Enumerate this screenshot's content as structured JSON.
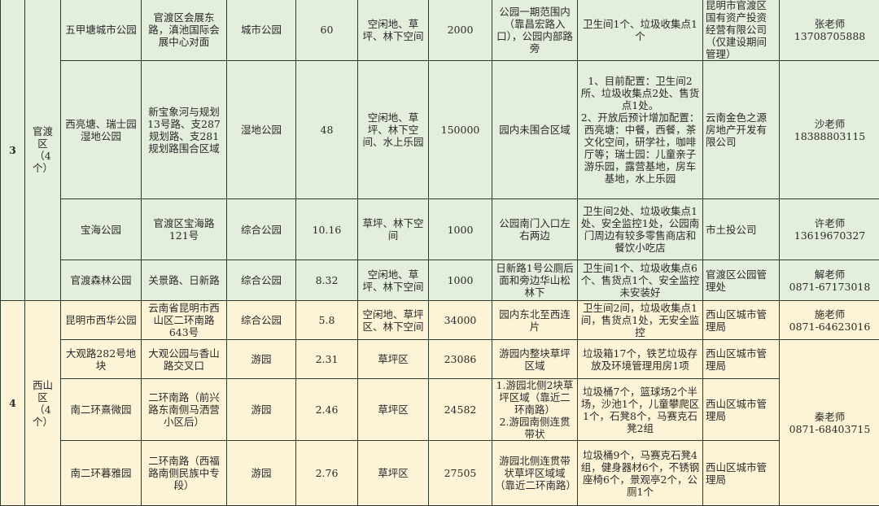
{
  "groups": [
    {
      "no": "3",
      "district": "官渡区\n（4个）",
      "rows": [
        {
          "name": "五甲塘城市公园",
          "address": "官渡区会展东路，滇池国际会展中心对面",
          "type": "城市公园",
          "area": "60",
          "space": "空闲地、草坪、林下空间",
          "size": "2000",
          "location": "公园一期范围内（靠昌宏路入口），公园内部路旁",
          "facilities": "卫生间1个、垃圾收集点1个",
          "manager": "昆明市官渡区国有资产投资经营有限公司（仅建设期间管理）",
          "contact": "张老师\n13708705888"
        },
        {
          "name": "西亮塘、瑞士园湿地公园",
          "address": "新宝象河与规划13号路、支287规划路、支281规划路围合区域",
          "type": "湿地公园",
          "area": "48",
          "space": "空闲地、草坪、林下空间、水上乐园",
          "size": "150000",
          "location": "园内未围合区域",
          "facilities": "1、目前配置：卫生间2所、垃圾收集点2处、售货点1处。\n2、开放后预计增加配置：西亮塘：中餐，西餐，茶文化空间，研学社，咖啡厅等；瑞士园：儿童亲子游乐园，露营基地，房车基地，水上乐园",
          "manager": "云南金色之源房地产开发有限公司",
          "contact": "沙老师\n18388803115"
        },
        {
          "name": "宝海公园",
          "address": "官渡区宝海路121号",
          "type": "综合公园",
          "area": "10.16",
          "space": "草坪、林下空间",
          "size": "1000",
          "location": "公园南门入口左右两边",
          "facilities": "卫生间2处、垃圾收集点1处、安全监控1处，公园南门周边有较多零售商店和餐饮小吃店",
          "manager": "市土投公司",
          "contact": "许老师\n13619670327"
        },
        {
          "name": "官渡森林公园",
          "address": "关景路、日新路",
          "type": "综合公园",
          "area": "8.32",
          "space": "空闲地、草坪、林下空间",
          "size": "1000",
          "location": "日新路1号公厕后面和旁边华山松林下",
          "facilities": "卫生间1个、垃圾收集点6个、售货点1个、安全监控未安装好",
          "manager": "官渡区公园管理处",
          "contact": "解老师\n0871-67173018"
        }
      ]
    },
    {
      "no": "4",
      "district": "西山区\n（4个）",
      "rows": [
        {
          "name": "昆明市西华公园",
          "address": "云南省昆明市西山区二环南路643号",
          "type": "综合公园",
          "area": "5.8",
          "space": "空闲地、草坪区、林下空间",
          "size": "34000",
          "location": "园内东北至西连片",
          "facilities": "卫生间2间，垃圾收集点1间，售货点1处，无安全监控",
          "manager": "西山区城市管理局",
          "contact": "施老师\n0871-64623016"
        },
        {
          "name": "大观路282号地块",
          "address": "大观公园与香山路交叉口",
          "type": "游园",
          "area": "2.31",
          "space": "草坪区",
          "size": "23086",
          "location": "游园内整块草坪区域",
          "facilities": "垃圾箱17个，铁艺垃圾存放及环境管理用房1项",
          "manager": "西山区城市管理局",
          "contact": "秦老师\n0871-68403715"
        },
        {
          "name": "南二环熹微园",
          "address": "二环南路（前兴路东南侧马洒营小区后）",
          "type": "游园",
          "area": "2.46",
          "space": "草坪区",
          "size": "24582",
          "location": "1.游园北侧2块草坪区域（靠近二环南路）\n2.游园南侧连贯带状",
          "facilities": "垃圾桶7个，篮球场2个半场，沙池1个，儿童攀爬区1个，石凳8个，马赛克石凳2组",
          "manager": "西山区城市管理局",
          "contact": ""
        },
        {
          "name": "南二环暮雅园",
          "address": "二环南路（西福路南侧民族中专段）",
          "type": "游园",
          "area": "2.76",
          "space": "草坪区",
          "size": "27505",
          "location": "游园北侧连贯带状草坪区域域（靠近二环南路）",
          "facilities": "垃圾桶9个，马赛克石凳4组，健身器材6个，不锈钢座椅6个，景观亭2个，公厕1个",
          "manager": "西山区城市管理局",
          "contact": ""
        }
      ]
    }
  ]
}
